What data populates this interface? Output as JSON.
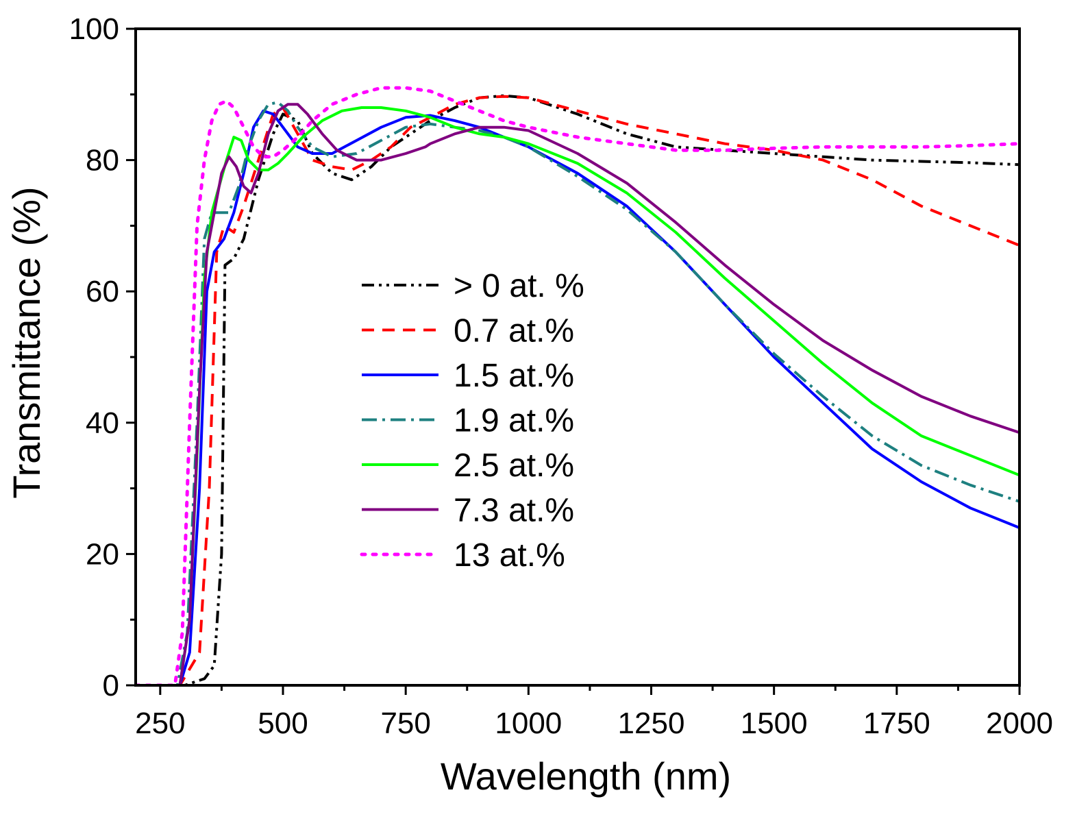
{
  "chart_data": {
    "type": "line",
    "title": "",
    "xlabel": "Wavelength (nm)",
    "ylabel": "Transmittance (%)",
    "xlim": [
      200,
      2000
    ],
    "ylim": [
      0,
      100
    ],
    "xticks": [
      250,
      500,
      750,
      1000,
      1250,
      1500,
      1750,
      2000
    ],
    "yticks": [
      0,
      20,
      40,
      60,
      80,
      100
    ],
    "grid": false,
    "legend_position": "center",
    "series": [
      {
        "name": "> 0 at. %",
        "color": "#000000",
        "style": "dash-dot-dot",
        "x": [
          200,
          300,
          340,
          360,
          375,
          382,
          400,
          420,
          450,
          480,
          500,
          530,
          560,
          600,
          640,
          680,
          720,
          760,
          800,
          850,
          900,
          950,
          1000,
          1100,
          1200,
          1300,
          1400,
          1500,
          1600,
          1700,
          1800,
          1900,
          2000
        ],
        "y": [
          0,
          0,
          1,
          3,
          20,
          64,
          65,
          68,
          77,
          84,
          87,
          86,
          81,
          78,
          77,
          79,
          82,
          84,
          86,
          88,
          89.5,
          89.8,
          89.5,
          87,
          84,
          82,
          81.5,
          81,
          80.5,
          80,
          79.8,
          79.6,
          79.3
        ]
      },
      {
        "name": "0.7 at.%",
        "color": "#ff0000",
        "style": "dash",
        "x": [
          200,
          290,
          330,
          350,
          365,
          380,
          400,
          420,
          450,
          480,
          500,
          530,
          560,
          600,
          640,
          680,
          720,
          760,
          800,
          850,
          900,
          950,
          1000,
          1100,
          1200,
          1300,
          1400,
          1500,
          1600,
          1700,
          1800,
          1900,
          2000
        ],
        "y": [
          0,
          0,
          5,
          30,
          66,
          70,
          69,
          73,
          80,
          87,
          88,
          84,
          80,
          79,
          78.5,
          80,
          82,
          85,
          86.5,
          88.5,
          89.5,
          89.7,
          89.5,
          87.5,
          85.5,
          84,
          82.5,
          81.5,
          80,
          77,
          73,
          70,
          67
        ]
      },
      {
        "name": "1.5 at.%",
        "color": "#0000ff",
        "style": "solid",
        "x": [
          200,
          290,
          310,
          330,
          345,
          360,
          380,
          400,
          420,
          440,
          460,
          480,
          500,
          530,
          560,
          600,
          650,
          700,
          750,
          800,
          850,
          900,
          950,
          1000,
          1100,
          1200,
          1300,
          1400,
          1500,
          1600,
          1700,
          1800,
          1900,
          2000
        ],
        "y": [
          0,
          0,
          5,
          30,
          60,
          66,
          68,
          72,
          78,
          85,
          87.5,
          87,
          85,
          82,
          81,
          81,
          83,
          85,
          86.5,
          86.8,
          86,
          85,
          83.5,
          82,
          78,
          73,
          66,
          58,
          50,
          43,
          36,
          31,
          27,
          24
        ]
      },
      {
        "name": "1.9 at.%",
        "color": "#1e8080",
        "style": "dash-dot",
        "x": [
          200,
          285,
          305,
          325,
          340,
          355,
          370,
          390,
          410,
          430,
          450,
          470,
          490,
          510,
          530,
          560,
          600,
          650,
          700,
          750,
          800,
          850,
          900,
          950,
          1000,
          1100,
          1200,
          1300,
          1400,
          1500,
          1600,
          1700,
          1800,
          1900,
          2000
        ],
        "y": [
          0,
          0,
          8,
          40,
          68,
          72,
          72,
          72,
          76,
          82,
          86,
          88.5,
          88.8,
          87.5,
          85,
          82,
          80.5,
          81,
          83,
          85,
          85.5,
          85,
          84.5,
          83.5,
          82,
          77.5,
          72.5,
          66,
          58,
          50.5,
          44,
          38,
          33.5,
          30.5,
          28
        ]
      },
      {
        "name": "2.5 at.%",
        "color": "#00ff00",
        "style": "solid",
        "x": [
          200,
          290,
          310,
          325,
          340,
          355,
          370,
          385,
          400,
          415,
          430,
          450,
          470,
          490,
          510,
          540,
          580,
          620,
          660,
          700,
          750,
          800,
          850,
          900,
          950,
          1000,
          1100,
          1200,
          1300,
          1400,
          1500,
          1600,
          1700,
          1800,
          1900,
          2000
        ],
        "y": [
          0,
          0,
          10,
          35,
          62,
          72,
          76,
          80,
          83.5,
          83,
          80,
          78.5,
          78.5,
          79.5,
          81,
          83.5,
          86,
          87.5,
          88,
          88,
          87.5,
          86.5,
          85,
          84,
          83.5,
          82.5,
          79.5,
          75,
          69,
          62,
          55.5,
          49,
          43,
          38,
          35,
          32
        ]
      },
      {
        "name": "7.3 at.%",
        "color": "#800080",
        "style": "solid",
        "x": [
          200,
          290,
          310,
          330,
          345,
          360,
          375,
          390,
          405,
          420,
          435,
          450,
          470,
          490,
          510,
          530,
          550,
          580,
          610,
          650,
          700,
          750,
          790,
          800,
          850,
          900,
          950,
          1000,
          1100,
          1200,
          1300,
          1400,
          1500,
          1600,
          1700,
          1800,
          1900,
          2000
        ],
        "y": [
          0,
          0,
          10,
          45,
          66,
          72,
          78,
          80.5,
          79,
          76,
          75,
          78,
          84,
          87.5,
          88.5,
          88.5,
          87,
          84,
          81.5,
          80,
          80,
          81,
          82,
          82.5,
          84,
          85,
          85,
          84.5,
          81,
          76.5,
          70.5,
          64,
          58,
          52.5,
          48,
          44,
          41,
          38.5
        ]
      },
      {
        "name": "13 at.%",
        "color": "#ff00ff",
        "style": "dot",
        "x": [
          200,
          280,
          295,
          310,
          325,
          340,
          355,
          370,
          385,
          400,
          420,
          440,
          460,
          480,
          500,
          530,
          560,
          600,
          650,
          700,
          750,
          800,
          850,
          900,
          950,
          1000,
          1100,
          1200,
          1300,
          1400,
          1500,
          1600,
          1700,
          1800,
          1900,
          2000
        ],
        "y": [
          0,
          0,
          8,
          40,
          70,
          80,
          86,
          88.5,
          89,
          88,
          85,
          82,
          80.5,
          80.5,
          81.5,
          83.5,
          86,
          88.5,
          90,
          91,
          91,
          90.5,
          89,
          87.5,
          86,
          85,
          83.5,
          82.5,
          81.5,
          81.5,
          81.8,
          82,
          82,
          82,
          82.2,
          82.5
        ]
      }
    ]
  }
}
